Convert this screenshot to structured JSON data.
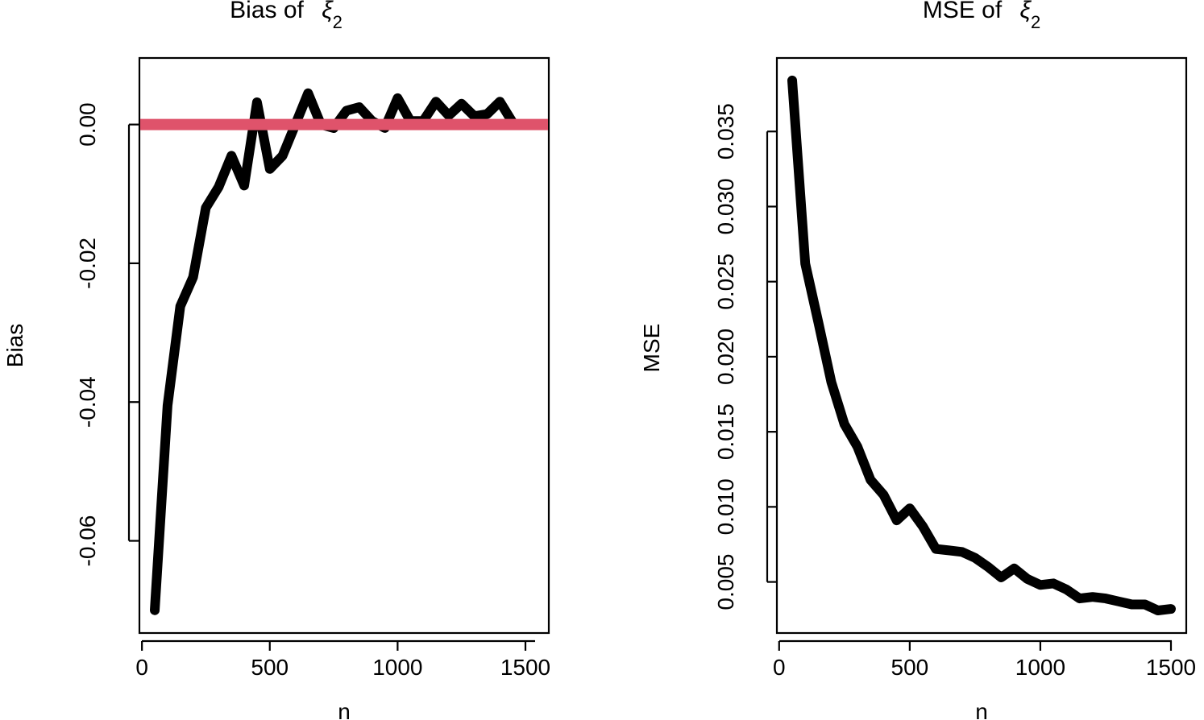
{
  "chart_data": [
    {
      "type": "line",
      "title": "Bias of",
      "title_symbol": "ξ",
      "title_subscript": "2",
      "xlabel": "n",
      "ylabel": "Bias",
      "xlim": [
        50,
        1500
      ],
      "ylim": [
        -0.0705,
        0.0075
      ],
      "xticks": [
        0,
        500,
        1000,
        1500
      ],
      "yticks": [
        -0.06,
        -0.04,
        -0.02,
        0.0
      ],
      "ytick_labels": [
        "-0.06",
        "-0.04",
        "-0.02",
        "0.00"
      ],
      "xtick_labels": [
        "0",
        "500",
        "1000",
        "1500"
      ],
      "series": [
        {
          "color": "#000000",
          "x": [
            50,
            100,
            150,
            200,
            250,
            300,
            350,
            400,
            450,
            500,
            550,
            600,
            650,
            700,
            750,
            800,
            850,
            900,
            950,
            1000,
            1050,
            1100,
            1150,
            1200,
            1250,
            1300,
            1350,
            1400,
            1450
          ],
          "y": [
            -0.07,
            -0.0405,
            -0.0262,
            -0.022,
            -0.012,
            -0.009,
            -0.0045,
            -0.0088,
            0.0032,
            -0.0064,
            -0.0045,
            0.0,
            0.0045,
            0.0,
            -0.0005,
            0.002,
            0.0025,
            0.0005,
            -0.0005,
            0.0038,
            0.0005,
            0.0005,
            0.0033,
            0.0013,
            0.003,
            0.0012,
            0.0015,
            0.0033,
            0.0003
          ]
        }
      ],
      "reference_line": {
        "y": 0.0,
        "color": "#df536b"
      }
    },
    {
      "type": "line",
      "title": "MSE of",
      "title_symbol": "ξ",
      "title_subscript": "2",
      "xlabel": "n",
      "ylabel": "MSE",
      "xlim": [
        50,
        1500
      ],
      "ylim": [
        0.0031,
        0.0385
      ],
      "xticks": [
        0,
        500,
        1000,
        1500
      ],
      "yticks": [
        0.005,
        0.01,
        0.015,
        0.02,
        0.025,
        0.03,
        0.035
      ],
      "ytick_labels": [
        "0.005",
        "0.010",
        "0.015",
        "0.020",
        "0.025",
        "0.030",
        "0.035"
      ],
      "xtick_labels": [
        "0",
        "500",
        "1000",
        "1500"
      ],
      "series": [
        {
          "color": "#000000",
          "x": [
            50,
            100,
            150,
            200,
            250,
            300,
            350,
            400,
            450,
            500,
            550,
            600,
            650,
            700,
            750,
            800,
            850,
            900,
            950,
            1000,
            1050,
            1100,
            1150,
            1200,
            1250,
            1300,
            1350,
            1400,
            1450,
            1500
          ],
          "y": [
            0.0384,
            0.0262,
            0.0223,
            0.0183,
            0.0155,
            0.014,
            0.0118,
            0.0108,
            0.0091,
            0.0099,
            0.0087,
            0.0072,
            0.0071,
            0.007,
            0.0066,
            0.006,
            0.0053,
            0.0059,
            0.0052,
            0.0048,
            0.0049,
            0.0045,
            0.0039,
            0.004,
            0.0039,
            0.0037,
            0.0035,
            0.0035,
            0.0031,
            0.0032
          ]
        }
      ]
    }
  ]
}
